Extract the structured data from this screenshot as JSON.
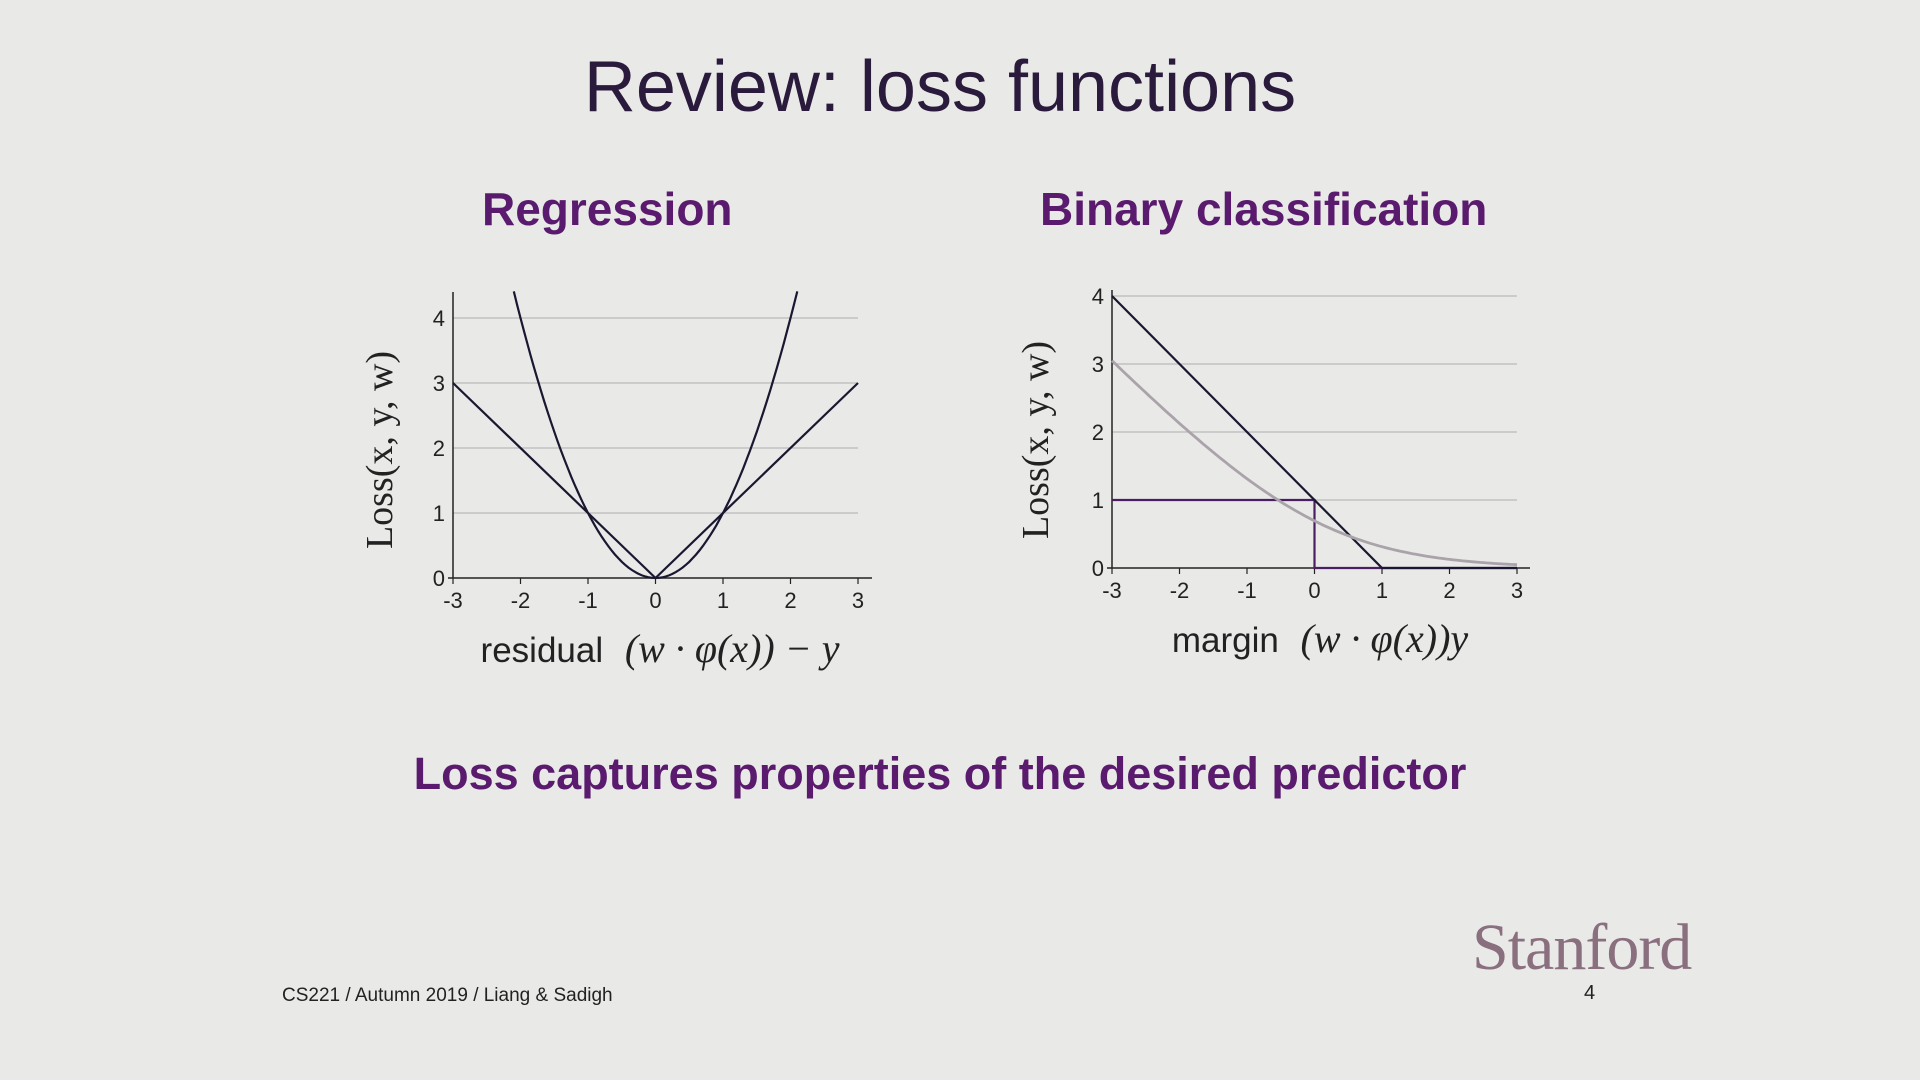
{
  "slide": {
    "title": "Review: loss functions",
    "tagline": "Loss captures properties of the desired predictor",
    "footer": "CS221 / Autumn 2019 / Liang & Sadigh",
    "page_number": "4",
    "logo_text": "Stanford"
  },
  "colors": {
    "heading": "#5a1a6e",
    "title": "#2a1a3c",
    "curve": "#1a1830",
    "gray_curve": "#aaa3aa",
    "zero_one": "#4b1e62"
  },
  "chart_data": [
    {
      "type": "line",
      "title": "Regression",
      "xlabel_prefix": "residual",
      "xlabel_math": "(w · φ(x)) − y",
      "ylabel": "Loss(x, y, w)",
      "xlim": [
        -3,
        3
      ],
      "ylim": [
        0,
        4.4
      ],
      "xticks": [
        "-3",
        "-2",
        "-1",
        "0",
        "1",
        "2",
        "3"
      ],
      "yticks": [
        "0",
        "1",
        "2",
        "3",
        "4"
      ],
      "grid": true,
      "series": [
        {
          "values": {
            "x": [
              -3,
              -2,
              -1,
              0,
              1,
              2,
              3
            ],
            "y": [
              9,
              4,
              1,
              0,
              1,
              4,
              9
            ]
          }
        },
        {
          "values": {
            "x": [
              -3,
              0,
              3
            ],
            "y": [
              3,
              0,
              3
            ]
          }
        }
      ]
    },
    {
      "type": "line",
      "title": "Binary classification",
      "xlabel_prefix": "margin",
      "xlabel_math": "(w · φ(x))y",
      "ylabel": "Loss(x, y, w)",
      "xlim": [
        -3,
        3
      ],
      "ylim": [
        0,
        4
      ],
      "xticks": [
        "-3",
        "-2",
        "-1",
        "0",
        "1",
        "2",
        "3"
      ],
      "yticks": [
        "0",
        "1",
        "2",
        "3",
        "4"
      ],
      "grid": true,
      "series": [
        {
          "values": {
            "x": [
              -3,
              0,
              0,
              3
            ],
            "y": [
              1,
              1,
              0,
              0
            ]
          }
        },
        {
          "values": {
            "x": [
              -3,
              1,
              3
            ],
            "y": [
              4,
              0,
              0
            ]
          }
        },
        {
          "values": {
            "x": [
              -3,
              -2,
              -1,
              0,
              1,
              2,
              3
            ],
            "y": [
              3.05,
              2.13,
              1.31,
              0.69,
              0.31,
              0.13,
              0.05
            ]
          }
        }
      ]
    }
  ]
}
